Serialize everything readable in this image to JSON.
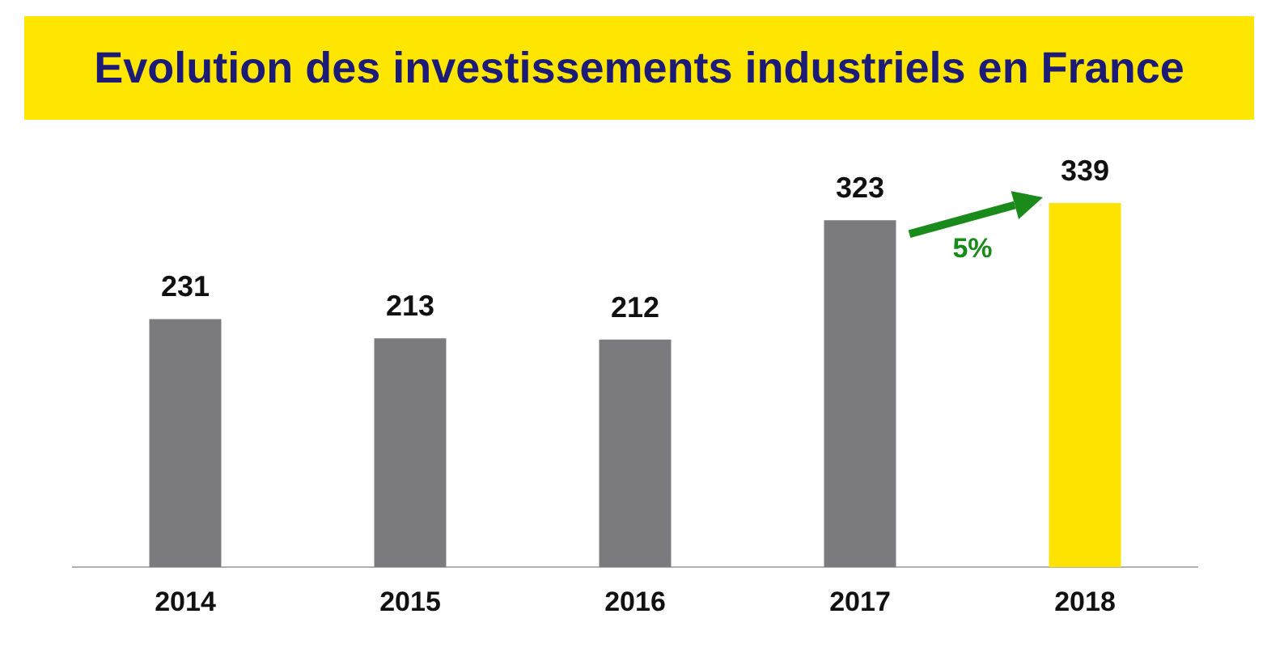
{
  "chart_data": {
    "type": "bar",
    "title": "Evolution des investissements industriels en France",
    "categories": [
      "2014",
      "2015",
      "2016",
      "2017",
      "2018"
    ],
    "values": [
      231,
      213,
      212,
      323,
      339
    ],
    "colors": [
      "#7b7b7f",
      "#7b7b7f",
      "#7b7b7f",
      "#7b7b7f",
      "#ffe300"
    ],
    "data_labels": true,
    "grid": false,
    "legend": false,
    "annotations": [
      "5%"
    ]
  }
}
